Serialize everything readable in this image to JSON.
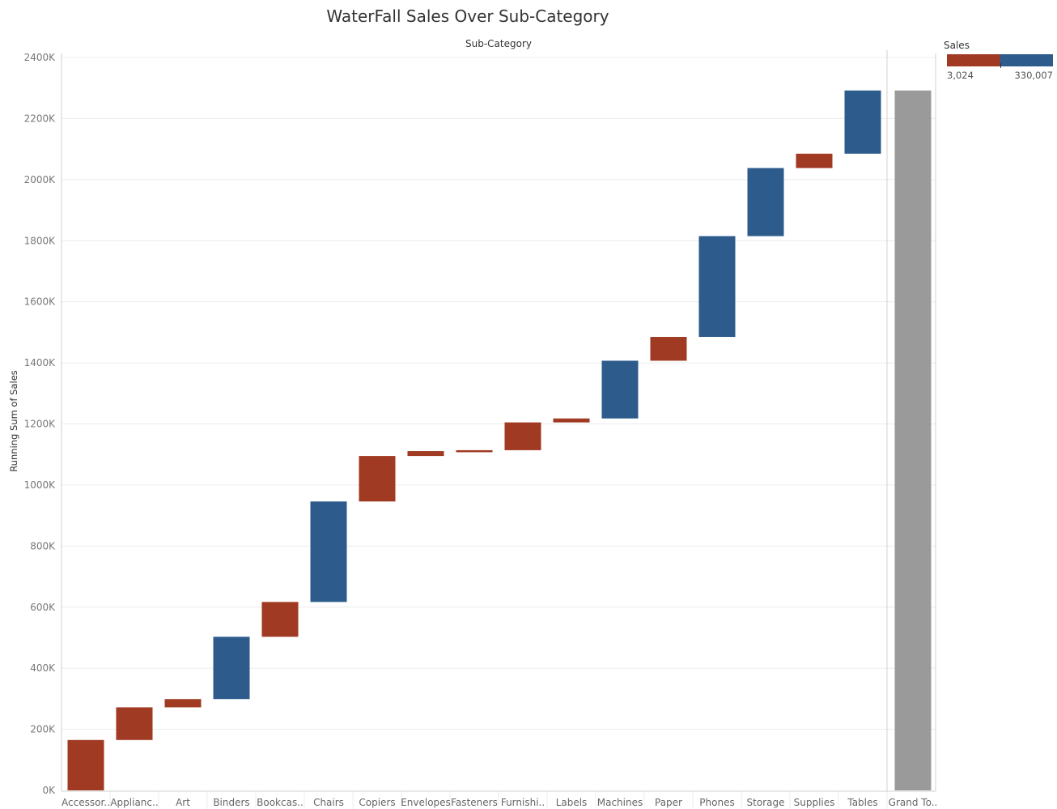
{
  "chart_data": {
    "type": "bar",
    "subtype": "waterfall",
    "title": "WaterFall Sales Over Sub-Category",
    "column_header": "Sub-Category",
    "ylabel": "Running Sum of Sales",
    "ylim": [
      0,
      2400
    ],
    "y_ticks": [
      0,
      200,
      400,
      600,
      800,
      1000,
      1200,
      1400,
      1600,
      1800,
      2000,
      2200,
      2400
    ],
    "y_tick_labels": [
      "0K",
      "200K",
      "400K",
      "600K",
      "800K",
      "1000K",
      "1200K",
      "1400K",
      "1600K",
      "1800K",
      "2000K",
      "2200K",
      "2400K"
    ],
    "y_unit": "K",
    "categories": [
      "Accessor..",
      "Applianc..",
      "Art",
      "Binders",
      "Bookcas..",
      "Chairs",
      "Copiers",
      "Envelopes",
      "Fasteners",
      "Furnishi..",
      "Labels",
      "Machines",
      "Paper",
      "Phones",
      "Storage",
      "Supplies",
      "Tables"
    ],
    "bars": [
      {
        "start": 0,
        "end": 165
      },
      {
        "start": 165,
        "end": 272
      },
      {
        "start": 272,
        "end": 299
      },
      {
        "start": 299,
        "end": 503
      },
      {
        "start": 503,
        "end": 617
      },
      {
        "start": 617,
        "end": 946
      },
      {
        "start": 946,
        "end": 1095
      },
      {
        "start": 1095,
        "end": 1111
      },
      {
        "start": 1111,
        "end": 1114
      },
      {
        "start": 1114,
        "end": 1205
      },
      {
        "start": 1205,
        "end": 1218
      },
      {
        "start": 1218,
        "end": 1407
      },
      {
        "start": 1407,
        "end": 1485
      },
      {
        "start": 1485,
        "end": 1815
      },
      {
        "start": 1815,
        "end": 2038
      },
      {
        "start": 2038,
        "end": 2085
      },
      {
        "start": 2085,
        "end": 2292
      }
    ],
    "grand_total": {
      "label": "Grand To..",
      "value": 2292
    },
    "grid": true,
    "legend": {
      "title": "Sales",
      "position": "top-right",
      "min_label": "3,024",
      "max_label": "330,007",
      "low_color": "#a03a22",
      "high_color": "#2c5b8c"
    },
    "colors": {
      "increase_high": "#2c5b8c",
      "increase_low": "#a03a22",
      "total": "#9a9a9a",
      "grid": "#ececec",
      "axis": "#d0d0d0"
    }
  }
}
